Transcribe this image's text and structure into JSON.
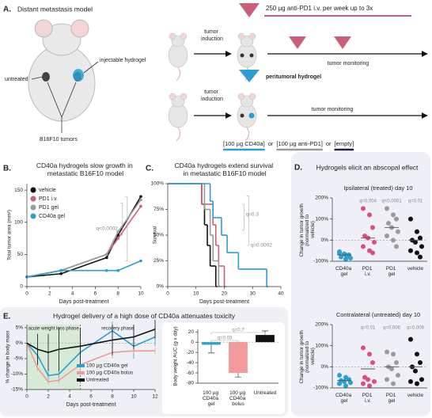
{
  "panel_a": {
    "letter": "A.",
    "title": "Distant metastasis model",
    "untreated": "untreated",
    "hydrogel": "injectable hydrogel",
    "tumors": "B16F10 tumors",
    "induction_top": "tumor induction",
    "induction_bottom": "tumor induction",
    "dosing": "250 µg anti-PD1 i.v. per week up to 3x",
    "monitoring_top": "tumor monitoring",
    "monitoring_bottom": "tumor monitoring",
    "peritumoral": "peritumoral hydrogel",
    "legend": [
      "[100 µg CD40a]",
      "or",
      "[100 µg anti-PD1]",
      "or",
      "[empty]"
    ]
  },
  "panel_letters": [
    "B.",
    "C.",
    "D.",
    "E."
  ],
  "panel_d_title": "Hydrogels elicit an abscopal effect",
  "chart_data": [
    {
      "type": "line",
      "title": "CD40a hydrogels slow growth in metastatic B16F10 model",
      "x_label": "Days post-treatment",
      "y_label": "Total tumor area (mm²)",
      "x": [
        0,
        3,
        7,
        8,
        10
      ],
      "series": [
        {
          "name": "vehicle",
          "color": "#111111",
          "values": [
            15,
            20,
            45,
            80,
            140
          ]
        },
        {
          "name": "PD1 i.v.",
          "color": "#c9607a",
          "values": [
            15,
            25,
            50,
            75,
            125
          ]
        },
        {
          "name": "PD1 gel",
          "color": "#9a9a9a",
          "values": [
            15,
            25,
            50,
            85,
            135
          ]
        },
        {
          "name": "CD40a gel",
          "color": "#2a9fd0",
          "values": [
            15,
            25,
            25,
            25,
            40
          ]
        }
      ],
      "xlim": [
        0,
        10
      ],
      "xticks": [
        0,
        2,
        4,
        6,
        8,
        10
      ],
      "ylim": [
        0,
        160
      ],
      "yticks": [
        0,
        50,
        100,
        150
      ],
      "annotation": "q<0.0002"
    },
    {
      "type": "step",
      "title": "CD40a hydrogels extend survival in metastatic B16F10 model",
      "x_label": "Days post-treatment",
      "y_label": "Survival",
      "series": [
        {
          "color": "#111111",
          "x": [
            0,
            12,
            13,
            14,
            15,
            17
          ],
          "values": [
            100,
            80,
            60,
            40,
            20,
            0
          ]
        },
        {
          "color": "#c9607a",
          "x": [
            0,
            12,
            16,
            17,
            18,
            20
          ],
          "values": [
            100,
            80,
            60,
            40,
            20,
            0
          ]
        },
        {
          "color": "#9a9a9a",
          "x": [
            0,
            13,
            15,
            16,
            18
          ],
          "values": [
            100,
            75,
            50,
            25,
            0
          ]
        },
        {
          "color": "#2a9fd0",
          "x": [
            0,
            15,
            16,
            19,
            21,
            25,
            35
          ],
          "values": [
            100,
            83,
            67,
            50,
            33,
            17,
            0
          ]
        }
      ],
      "xlim": [
        0,
        40
      ],
      "xticks": [
        0,
        10,
        20,
        30,
        40
      ],
      "ylim": [
        0,
        100
      ],
      "yticks": [
        {
          "value": 0,
          "label": "0%"
        },
        {
          "value": 25,
          "label": "25%"
        },
        {
          "value": 50,
          "label": "50%"
        },
        {
          "value": 75,
          "label": "75%"
        },
        {
          "value": 100,
          "label": "100%"
        }
      ],
      "annotations": [
        "q=0.3",
        "q=0.0002"
      ]
    },
    {
      "type": "strip",
      "title": "Ipsilateral (treated) day 10",
      "y_label": "Change in tumor growth (normalized to vehicle)",
      "categories": [
        "CD40a gel",
        "PD1 i.v.",
        "PD1 gel",
        "vehicle"
      ],
      "colors": [
        "#2a9fd0",
        "#d9507c",
        "#9a9a9a",
        "#111111"
      ],
      "points": [
        [
          -60,
          -70,
          -75,
          -80,
          -65,
          -85,
          -55,
          -90,
          -70
        ],
        [
          150,
          120,
          60,
          20,
          10,
          -10,
          -30,
          -50,
          -60
        ],
        [
          150,
          120,
          100,
          80,
          60,
          40,
          20,
          0,
          -30
        ],
        [
          100,
          40,
          10,
          0,
          -10,
          -30,
          -50,
          -60,
          -80
        ]
      ],
      "medians": [
        -70,
        10,
        60,
        0
      ],
      "ylim": [
        -100,
        200
      ],
      "yticks": [
        {
          "value": -100,
          "label": "-100%"
        },
        {
          "value": 0,
          "label": "0%"
        },
        {
          "value": 100,
          "label": "100%"
        },
        {
          "value": 200,
          "label": "200%"
        }
      ],
      "annotations": [
        "q=0.004",
        "q<0.0001",
        "q=0.01"
      ]
    },
    {
      "type": "strip",
      "title": "Contralateral (untreated) day 10",
      "y_label": "Change in tumor growth (normalized to vehicle)",
      "categories": [
        "CD40a gel",
        "PD1 i.v.",
        "PD1 gel",
        "vehicle"
      ],
      "colors": [
        "#2a9fd0",
        "#d9507c",
        "#9a9a9a",
        "#111111"
      ],
      "points": [
        [
          -40,
          -50,
          -60,
          -65,
          -70,
          -75,
          -80,
          -90
        ],
        [
          90,
          60,
          20,
          -50,
          -60,
          -70,
          -80,
          -90
        ],
        [
          70,
          60,
          20,
          0,
          -10,
          -40,
          -60,
          -80
        ],
        [
          130,
          60,
          20,
          0,
          -20,
          -60,
          -70,
          -80
        ]
      ],
      "medians": [
        -65,
        -10,
        0,
        0
      ],
      "ylim": [
        -100,
        200
      ],
      "yticks": [
        {
          "value": -100,
          "label": "-100%"
        },
        {
          "value": 0,
          "label": "0%"
        },
        {
          "value": 100,
          "label": "100%"
        },
        {
          "value": 200,
          "label": "200%"
        }
      ],
      "annotations": [
        "q=0.01",
        "q=0.006",
        "q=0.006"
      ]
    },
    {
      "type": "line",
      "title": "Hydrogel delivery of a high dose of CD40a attenuates toxicity",
      "x_label": "Days post-treatment",
      "y_label": "% change in body mass",
      "phases": [
        "acute weight loss phase",
        "recovery phase"
      ],
      "shaded": [
        0,
        5
      ],
      "x": [
        0,
        1,
        2,
        3,
        5,
        8,
        10,
        12
      ],
      "series": [
        {
          "name": "100 µg CD40a gel",
          "color": "#2a9fd0",
          "values": [
            0,
            -4,
            -10.5,
            -10,
            -3,
            4,
            -1,
            2
          ],
          "errors": [
            0,
            2,
            2,
            2,
            3,
            3,
            4,
            3
          ]
        },
        {
          "name": "100 µg CD40a bolus",
          "color": "#f29a9a",
          "values": [
            0,
            -8,
            -12.5,
            -12,
            -7,
            -3,
            -2.5,
            -2.5
          ],
          "errors": [
            0,
            1,
            1,
            1,
            2,
            2,
            1,
            1
          ]
        },
        {
          "name": "Untreated",
          "color": "#111111",
          "values": [
            0,
            -2,
            -3,
            -2,
            -1,
            1,
            2,
            4.5
          ],
          "errors": [
            0,
            5,
            6,
            7,
            6,
            5,
            4,
            3
          ]
        }
      ],
      "xlim": [
        0,
        12
      ],
      "xticks": [
        0,
        2,
        4,
        6,
        8,
        10,
        12
      ],
      "ylim": [
        -15,
        6
      ],
      "yticks": [
        {
          "value": -15,
          "label": "-15%"
        },
        {
          "value": -10,
          "label": "-10%"
        },
        {
          "value": -5,
          "label": "-5%"
        },
        {
          "value": 0,
          "label": "0%"
        },
        {
          "value": 5,
          "label": "5%"
        }
      ]
    },
    {
      "type": "bar",
      "y_label": "Body weight AUC (g x day)",
      "categories": [
        "100 µg CD40a gel",
        "100 µg CD40a bolus",
        "Untreated"
      ],
      "colors": [
        "#2a9fd0",
        "#f29a9a",
        "#111111"
      ],
      "values": [
        -5,
        -60,
        14
      ],
      "errors": [
        16,
        8,
        8
      ],
      "ylim": [
        -80,
        25
      ],
      "yticks": [
        -80,
        -60,
        -40,
        -20,
        0,
        20
      ],
      "annotations": [
        "q=0.03",
        "q=0.7"
      ]
    }
  ]
}
